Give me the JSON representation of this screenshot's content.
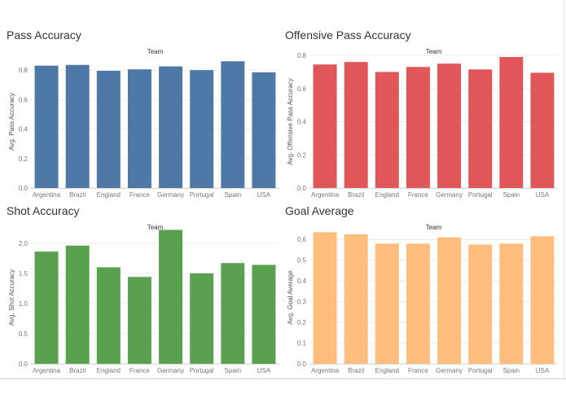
{
  "colors": {
    "text_title": "#333333",
    "text_axis": "#555555",
    "text_tick": "#777777",
    "grid": "#ececec",
    "axis_line": "#d6d6d6"
  },
  "chart_data": [
    {
      "type": "bar",
      "title": "Pass Accuracy",
      "column_header": "Team",
      "ylabel": "Avg. Pass Accuracy",
      "categories": [
        "Argentina",
        "Brazil",
        "England",
        "France",
        "Germany",
        "Portugal",
        "Spain",
        "USA"
      ],
      "values": [
        0.83,
        0.835,
        0.795,
        0.805,
        0.825,
        0.8,
        0.86,
        0.785
      ],
      "ylim": [
        0,
        0.9
      ],
      "yticks": [
        0.0,
        0.2,
        0.4,
        0.6,
        0.8
      ],
      "ytick_labels": [
        "0.0",
        "0.2",
        "0.4",
        "0.6",
        "0.8"
      ],
      "color": "#4e79a7",
      "grid": true
    },
    {
      "type": "bar",
      "title": "Offensive Pass Accuracy",
      "column_header": "Team",
      "ylabel": "Avg. Offensive Pass Accuracy",
      "categories": [
        "Argentina",
        "Brazil",
        "England",
        "France",
        "Germany",
        "Portugal",
        "Spain",
        "USA"
      ],
      "values": [
        0.745,
        0.76,
        0.7,
        0.73,
        0.75,
        0.715,
        0.79,
        0.695
      ],
      "ylim": [
        0,
        0.8
      ],
      "yticks": [
        0.0,
        0.2,
        0.4,
        0.6,
        0.8
      ],
      "ytick_labels": [
        "0.0",
        "0.2",
        "0.4",
        "0.6",
        "0.8"
      ],
      "color": "#e15759",
      "grid": true
    },
    {
      "type": "bar",
      "title": "Shot Accuracy",
      "column_header": "Team",
      "ylabel": "Avg. Shot Accuracy",
      "categories": [
        "Argentina",
        "Brazil",
        "England",
        "France",
        "Germany",
        "Portugal",
        "Spain",
        "USA"
      ],
      "values": [
        1.86,
        1.96,
        1.6,
        1.44,
        2.22,
        1.5,
        1.67,
        1.64
      ],
      "ylim": [
        0,
        2.2
      ],
      "yticks": [
        0.0,
        0.5,
        1.0,
        1.5,
        2.0
      ],
      "ytick_labels": [
        "0.0",
        "0.5",
        "1.0",
        "1.5",
        "2.0"
      ],
      "color": "#59a14f",
      "grid": true
    },
    {
      "type": "bar",
      "title": "Goal Average",
      "column_header": "Team",
      "ylabel": "Avg. Goal Average",
      "categories": [
        "Argentina",
        "Brazil",
        "England",
        "France",
        "Germany",
        "Portugal",
        "Spain",
        "USA"
      ],
      "values": [
        0.635,
        0.625,
        0.58,
        0.58,
        0.61,
        0.575,
        0.58,
        0.615
      ],
      "ylim": [
        0,
        0.64
      ],
      "yticks": [
        0.0,
        0.1,
        0.2,
        0.3,
        0.4,
        0.5,
        0.6
      ],
      "ytick_labels": [
        "0.0",
        "0.1",
        "0.2",
        "0.3",
        "0.4",
        "0.5",
        "0.6"
      ],
      "color": "#ffbe7d",
      "grid": true
    }
  ]
}
